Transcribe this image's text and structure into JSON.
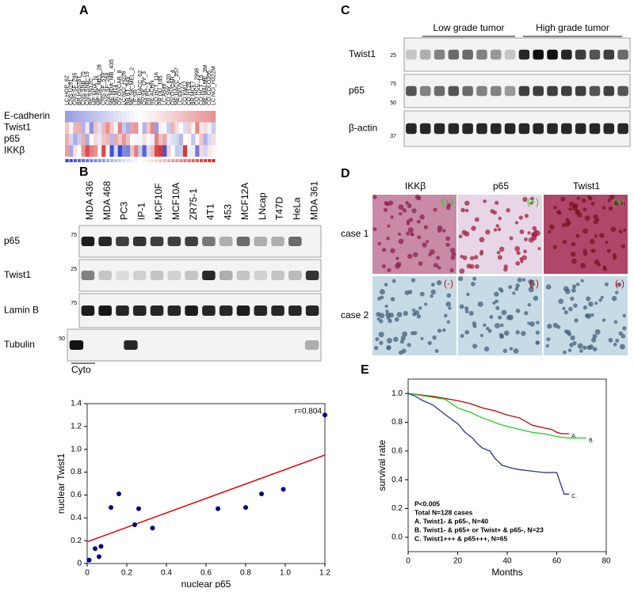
{
  "panel_labels": [
    "A",
    "B",
    "C",
    "D",
    "E"
  ],
  "heatmap": {
    "columns": [
      "LC:HOP_62",
      "CNS:U251",
      "CNS:SF_295",
      "BR:HS578T",
      "CNS:SNB_75",
      "CNS:SNB_19",
      "RE:SN12C",
      "ME:MDA_N",
      "ME:SK_MEL_28",
      "CNS:SF_539",
      "CNS:SF_268",
      "ME:MDA_MB_435",
      "ME:M14",
      "OV:OVCAR_8",
      "LC:NCI_H226",
      "BR:BT_549",
      "ME:SK_MEL_2",
      "LE:SR",
      "ME:UACC_62",
      "OV:SK_OV_3",
      "PR:PC_3",
      "RE:ACHN",
      "CO:HCT_116",
      "PR:DU_145",
      "LC:A549",
      "CO:SW_620",
      "OV:OVCAR_4",
      "ME:UACC_257",
      "LC:EKVX",
      "CO:KM12",
      "CO:HT29",
      "BR:MCF7",
      "CO:HCC_2998",
      "CO:HCT_15",
      "ME:MALME_3M",
      "CO:COLO205",
      "LC:NCI_H322M"
    ],
    "rows": [
      "E-cadherin",
      "Twist1",
      "p65",
      "IKKβ"
    ]
  },
  "blot_b": {
    "lanes": [
      "MDA 436",
      "MDA 468",
      "PC3",
      "IP-1",
      "MCF10F",
      "MCF10A",
      "ZR75-1",
      "4T1",
      "453",
      "MCF12A",
      "LNcap",
      "T47D",
      "HeLa",
      "MDA 361"
    ],
    "rows": [
      "p65",
      "Twist1",
      "Lamin B",
      "Tubulin"
    ],
    "markers": [
      "75",
      "25",
      "75",
      "50"
    ],
    "fraction": "Cyto"
  },
  "blot_c": {
    "groups": [
      "Low grade tumor",
      "High grade tumor"
    ],
    "rows": [
      "Twist1",
      "p65",
      "β-actin"
    ],
    "markers": [
      "25",
      "75",
      "50",
      "37"
    ]
  },
  "ihc": {
    "columns": [
      "IKKβ",
      "p65",
      "Twist1"
    ],
    "rows": [
      "case 1",
      "case 2"
    ],
    "scores": [
      [
        "(+)",
        "(+)",
        "(+)"
      ],
      [
        "(-)",
        "(-)",
        "(-)"
      ]
    ]
  },
  "chart_data": [
    {
      "type": "scatter",
      "x_label": "nuclear p65",
      "y_label": "nuclear Twist1",
      "annotation": "r=0.804",
      "x": [
        0.01,
        0.04,
        0.06,
        0.07,
        0.12,
        0.16,
        0.24,
        0.26,
        0.33,
        0.66,
        0.8,
        0.88,
        0.99,
        1.2
      ],
      "series": [
        {
          "color": "#000080",
          "values": [
            0.03,
            0.13,
            0.06,
            0.15,
            0.49,
            0.61,
            0.34,
            0.48,
            0.31,
            0.48,
            0.49,
            0.61,
            0.65,
            1.3
          ]
        }
      ],
      "fit": {
        "color": "#e00000",
        "x": [
          0,
          1.2
        ],
        "y": [
          0.19,
          0.95
        ]
      },
      "xlim": [
        0,
        1.2
      ],
      "xticks": [
        0,
        0.2,
        0.4,
        0.6,
        0.8,
        {
          "value": 1,
          "label": "1.0"
        },
        1.2
      ],
      "ylim": [
        0,
        1.4
      ],
      "yticks": [
        0,
        0.2,
        0.4,
        0.6,
        0.8,
        {
          "value": 1,
          "label": "1.0"
        },
        1.2,
        1.4
      ]
    },
    {
      "type": "line",
      "x_label": "Months",
      "y_label": "survival rate",
      "annotations": [
        "P<0.005",
        "Total N=128 cases",
        "A. Twist1- & p65-, N=40",
        "B. Twist1- & p65+ or Twist+ & p65-, N=23",
        "C. Twist1+++ & p65+++, N=65"
      ],
      "series": [
        {
          "name": "A.",
          "color": "#c00000",
          "x": [
            0,
            10,
            20,
            25,
            30,
            35,
            40,
            45,
            48,
            50,
            55,
            58,
            60,
            62,
            65
          ],
          "values": [
            1,
            0.98,
            0.95,
            0.93,
            0.9,
            0.88,
            0.85,
            0.83,
            0.8,
            0.78,
            0.76,
            0.75,
            0.73,
            0.72,
            0.72
          ]
        },
        {
          "name": "B.",
          "color": "#22cc22",
          "x": [
            0,
            15,
            20,
            25,
            30,
            38,
            45,
            50,
            55,
            60,
            65,
            72
          ],
          "values": [
            1,
            0.96,
            0.9,
            0.87,
            0.83,
            0.78,
            0.75,
            0.73,
            0.72,
            0.7,
            0.69,
            0.69
          ]
        },
        {
          "name": "C.",
          "color": "#303090",
          "x": [
            0,
            3,
            6,
            10,
            13,
            16,
            20,
            23,
            26,
            28,
            30,
            33,
            35,
            38,
            42,
            45,
            50,
            55,
            60,
            63,
            65
          ],
          "values": [
            1,
            0.98,
            0.95,
            0.92,
            0.88,
            0.84,
            0.79,
            0.73,
            0.69,
            0.65,
            0.62,
            0.6,
            0.55,
            0.5,
            0.48,
            0.47,
            0.46,
            0.45,
            0.45,
            0.3,
            0.3
          ]
        }
      ],
      "xlim": [
        0,
        80
      ],
      "xticks": [
        0,
        20,
        40,
        60,
        80
      ],
      "ylim": [
        -0.1,
        1.1
      ],
      "yticks": [
        {
          "value": 0,
          "label": "0.0"
        },
        0.2,
        0.4,
        0.6,
        0.8,
        {
          "value": 1,
          "label": "1.0"
        }
      ]
    }
  ]
}
